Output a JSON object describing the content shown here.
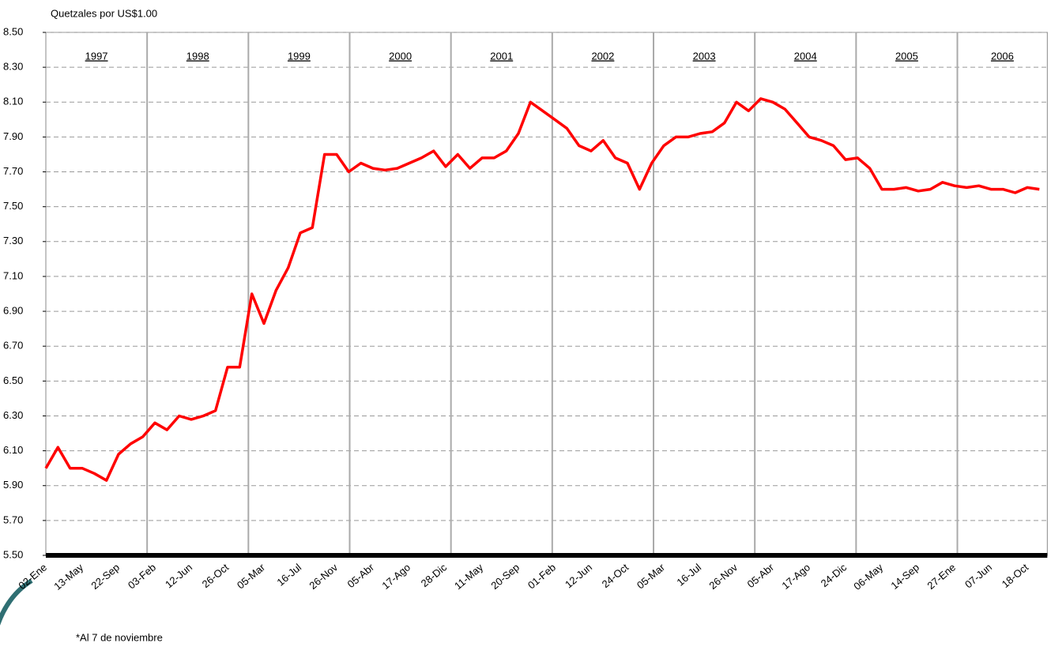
{
  "chart_data": {
    "type": "line",
    "y_label": "Quetzales por US$1.00",
    "note": "*Al  7 de noviembre",
    "years": [
      "1997",
      "1998",
      "1999",
      "2000",
      "2001",
      "2002",
      "2003",
      "2004",
      "2005",
      "2006"
    ],
    "categories": [
      "02-Ene",
      null,
      null,
      "13-May",
      null,
      null,
      "22-Sep",
      null,
      null,
      "03-Feb",
      null,
      null,
      "12-Jun",
      null,
      null,
      "26-Oct",
      null,
      null,
      "05-Mar",
      null,
      null,
      "16-Jul",
      null,
      null,
      "26-Nov",
      null,
      null,
      "05-Abr",
      null,
      null,
      "17-Ago",
      null,
      null,
      "28-Dic",
      null,
      null,
      "11-May",
      null,
      null,
      "20-Sep",
      null,
      null,
      "01-Feb",
      null,
      null,
      "12-Jun",
      null,
      null,
      "24-Oct",
      null,
      null,
      "05-Mar",
      null,
      null,
      "16-Jul",
      null,
      null,
      "26-Nov",
      null,
      null,
      "05-Abr",
      null,
      null,
      "17-Ago",
      null,
      null,
      "24-Dic",
      null,
      null,
      "06-May",
      null,
      null,
      "14-Sep",
      null,
      null,
      "27-Ene",
      null,
      null,
      "07-Jun",
      null,
      null,
      "18-Oct",
      null
    ],
    "series": [
      {
        "color": "#ff0000",
        "values": [
          6.0,
          6.12,
          6.0,
          6.0,
          5.97,
          5.93,
          6.08,
          6.14,
          6.18,
          6.26,
          6.22,
          6.3,
          6.28,
          6.3,
          6.33,
          6.58,
          6.58,
          7.0,
          6.83,
          7.02,
          7.15,
          7.35,
          7.38,
          7.8,
          7.8,
          7.7,
          7.75,
          7.72,
          7.71,
          7.72,
          7.75,
          7.78,
          7.82,
          7.73,
          7.8,
          7.72,
          7.78,
          7.78,
          7.82,
          7.92,
          8.1,
          8.05,
          8.0,
          7.95,
          7.85,
          7.82,
          7.88,
          7.78,
          7.75,
          7.6,
          7.75,
          7.85,
          7.9,
          7.9,
          7.92,
          7.93,
          7.98,
          8.1,
          8.05,
          8.12,
          8.1,
          8.06,
          7.98,
          7.9,
          7.88,
          7.85,
          7.77,
          7.78,
          7.72,
          7.6,
          7.6,
          7.61,
          7.59,
          7.6,
          7.64,
          7.62,
          7.61,
          7.62,
          7.6,
          7.6,
          7.58,
          7.61,
          7.6
        ]
      }
    ],
    "ylim": [
      5.5,
      8.5
    ],
    "yticks": [
      {
        "value": 5.5,
        "label": "5.50"
      },
      {
        "value": 5.7,
        "label": "5.70"
      },
      {
        "value": 5.9,
        "label": "5.90"
      },
      {
        "value": 6.1,
        "label": "6.10"
      },
      {
        "value": 6.3,
        "label": "6.30"
      },
      {
        "value": 6.5,
        "label": "6.50"
      },
      {
        "value": 6.7,
        "label": "6.70"
      },
      {
        "value": 6.9,
        "label": "6.90"
      },
      {
        "value": 7.1,
        "label": "7.10"
      },
      {
        "value": 7.3,
        "label": "7.30"
      },
      {
        "value": 7.5,
        "label": "7.50"
      },
      {
        "value": 7.7,
        "label": "7.70"
      },
      {
        "value": 7.9,
        "label": "7.90"
      },
      {
        "value": 8.1,
        "label": "8.10"
      },
      {
        "value": 8.3,
        "label": "8.30"
      },
      {
        "value": 8.5,
        "label": "8.50"
      }
    ],
    "grid": true
  }
}
